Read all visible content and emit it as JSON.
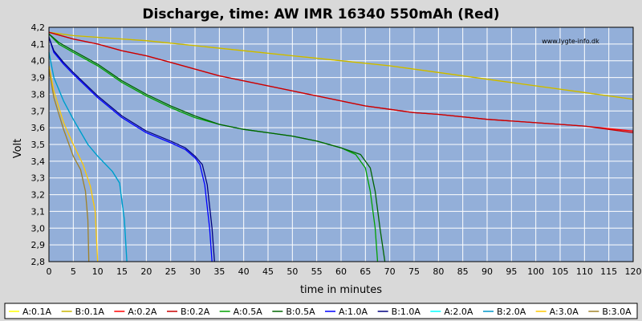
{
  "chart_data": {
    "type": "line",
    "title": "Discharge, time: AW IMR 16340 550mAh (Red)",
    "xlabel": "time in minutes",
    "ylabel": "Volt",
    "watermark": "www.lygte-info.dk",
    "xlim": [
      0,
      120
    ],
    "ylim": [
      2.8,
      4.2
    ],
    "x_ticks": [
      "0",
      "5",
      "10",
      "15",
      "20",
      "25",
      "30",
      "35",
      "40",
      "45",
      "50",
      "55",
      "60",
      "65",
      "70",
      "75",
      "80",
      "85",
      "90",
      "95",
      "100",
      "105",
      "110",
      "115",
      "120"
    ],
    "y_ticks": [
      "2,8",
      "2,9",
      "3,0",
      "3,1",
      "3,2",
      "3,3",
      "3,4",
      "3,5",
      "3,6",
      "3,7",
      "3,8",
      "3,9",
      "4,0",
      "4,1",
      "4,2"
    ],
    "grid": true,
    "legend_position": "bottom",
    "plot_background": "#93afd9",
    "series": [
      {
        "name": "A:0.1A",
        "color": "#ffff00",
        "points": [
          [
            0,
            4.17
          ],
          [
            5,
            4.15
          ],
          [
            10,
            4.14
          ],
          [
            20,
            4.12
          ],
          [
            30,
            4.09
          ],
          [
            40,
            4.06
          ],
          [
            50,
            4.03
          ],
          [
            60,
            4.0
          ],
          [
            70,
            3.97
          ],
          [
            80,
            3.93
          ],
          [
            90,
            3.89
          ],
          [
            100,
            3.85
          ],
          [
            110,
            3.81
          ],
          [
            120,
            3.77
          ]
        ]
      },
      {
        "name": "B:0.1A",
        "color": "#c8b400",
        "points": [
          [
            0,
            4.17
          ],
          [
            5,
            4.15
          ],
          [
            10,
            4.14
          ],
          [
            20,
            4.12
          ],
          [
            30,
            4.09
          ],
          [
            40,
            4.06
          ],
          [
            50,
            4.03
          ],
          [
            60,
            4.0
          ],
          [
            70,
            3.97
          ],
          [
            80,
            3.93
          ],
          [
            90,
            3.89
          ],
          [
            100,
            3.85
          ],
          [
            110,
            3.81
          ],
          [
            120,
            3.77
          ]
        ]
      },
      {
        "name": "A:0.2A",
        "color": "#ff0000",
        "points": [
          [
            0,
            4.17
          ],
          [
            5,
            4.13
          ],
          [
            10,
            4.1
          ],
          [
            15,
            4.06
          ],
          [
            20,
            4.03
          ],
          [
            25,
            3.99
          ],
          [
            30,
            3.95
          ],
          [
            35,
            3.91
          ],
          [
            40,
            3.88
          ],
          [
            45,
            3.85
          ],
          [
            50,
            3.82
          ],
          [
            55,
            3.79
          ],
          [
            60,
            3.76
          ],
          [
            65,
            3.73
          ],
          [
            70,
            3.71
          ],
          [
            75,
            3.69
          ],
          [
            80,
            3.68
          ],
          [
            90,
            3.65
          ],
          [
            100,
            3.63
          ],
          [
            110,
            3.61
          ],
          [
            120,
            3.58
          ]
        ]
      },
      {
        "name": "B:0.2A",
        "color": "#c80000",
        "points": [
          [
            0,
            4.17
          ],
          [
            5,
            4.13
          ],
          [
            10,
            4.1
          ],
          [
            15,
            4.06
          ],
          [
            20,
            4.03
          ],
          [
            25,
            3.99
          ],
          [
            30,
            3.95
          ],
          [
            35,
            3.91
          ],
          [
            40,
            3.88
          ],
          [
            45,
            3.85
          ],
          [
            50,
            3.82
          ],
          [
            55,
            3.79
          ],
          [
            60,
            3.76
          ],
          [
            65,
            3.73
          ],
          [
            70,
            3.71
          ],
          [
            75,
            3.69
          ],
          [
            80,
            3.68
          ],
          [
            90,
            3.65
          ],
          [
            100,
            3.63
          ],
          [
            110,
            3.61
          ],
          [
            120,
            3.57
          ]
        ]
      },
      {
        "name": "A:0.5A",
        "color": "#00a000",
        "points": [
          [
            0,
            4.16
          ],
          [
            2,
            4.1
          ],
          [
            5,
            4.05
          ],
          [
            10,
            3.97
          ],
          [
            15,
            3.87
          ],
          [
            20,
            3.79
          ],
          [
            25,
            3.72
          ],
          [
            30,
            3.66
          ],
          [
            35,
            3.62
          ],
          [
            40,
            3.59
          ],
          [
            45,
            3.57
          ],
          [
            50,
            3.55
          ],
          [
            55,
            3.52
          ],
          [
            60,
            3.48
          ],
          [
            63,
            3.44
          ],
          [
            65,
            3.36
          ],
          [
            66,
            3.22
          ],
          [
            67,
            3.0
          ],
          [
            67.5,
            2.8
          ]
        ]
      },
      {
        "name": "B:0.5A",
        "color": "#006400",
        "points": [
          [
            0,
            4.16
          ],
          [
            2,
            4.11
          ],
          [
            5,
            4.06
          ],
          [
            10,
            3.98
          ],
          [
            15,
            3.88
          ],
          [
            20,
            3.8
          ],
          [
            25,
            3.73
          ],
          [
            30,
            3.67
          ],
          [
            35,
            3.62
          ],
          [
            40,
            3.59
          ],
          [
            45,
            3.57
          ],
          [
            50,
            3.55
          ],
          [
            55,
            3.52
          ],
          [
            60,
            3.48
          ],
          [
            64,
            3.44
          ],
          [
            66,
            3.36
          ],
          [
            67,
            3.22
          ],
          [
            68,
            3.0
          ],
          [
            69,
            2.8
          ]
        ]
      },
      {
        "name": "A:1.0A",
        "color": "#0000ff",
        "points": [
          [
            0,
            4.14
          ],
          [
            1,
            4.05
          ],
          [
            3,
            3.98
          ],
          [
            5,
            3.92
          ],
          [
            10,
            3.78
          ],
          [
            15,
            3.66
          ],
          [
            20,
            3.57
          ],
          [
            25,
            3.51
          ],
          [
            28,
            3.47
          ],
          [
            30,
            3.42
          ],
          [
            31,
            3.38
          ],
          [
            32,
            3.26
          ],
          [
            33,
            3.0
          ],
          [
            33.5,
            2.8
          ]
        ]
      },
      {
        "name": "B:1.0A",
        "color": "#000080",
        "points": [
          [
            0,
            4.14
          ],
          [
            1,
            4.06
          ],
          [
            3,
            3.99
          ],
          [
            5,
            3.93
          ],
          [
            10,
            3.79
          ],
          [
            15,
            3.67
          ],
          [
            20,
            3.58
          ],
          [
            25,
            3.52
          ],
          [
            28,
            3.48
          ],
          [
            30,
            3.43
          ],
          [
            31.5,
            3.38
          ],
          [
            32.5,
            3.26
          ],
          [
            33.5,
            3.0
          ],
          [
            34,
            2.8
          ]
        ]
      },
      {
        "name": "A:2.0A",
        "color": "#00ffff",
        "points": [
          [
            0,
            4.05
          ],
          [
            1,
            3.9
          ],
          [
            3,
            3.76
          ],
          [
            5,
            3.65
          ],
          [
            8,
            3.5
          ],
          [
            10,
            3.43
          ],
          [
            13,
            3.34
          ],
          [
            14.5,
            3.27
          ],
          [
            15.5,
            3.05
          ],
          [
            16,
            2.8
          ]
        ]
      },
      {
        "name": "B:2.0A",
        "color": "#0096c8",
        "points": [
          [
            0,
            4.05
          ],
          [
            1,
            3.9
          ],
          [
            3,
            3.76
          ],
          [
            5,
            3.65
          ],
          [
            8,
            3.5
          ],
          [
            10,
            3.43
          ],
          [
            13,
            3.34
          ],
          [
            14.5,
            3.27
          ],
          [
            15.5,
            3.05
          ],
          [
            16,
            2.8
          ]
        ]
      },
      {
        "name": "A:3.0A",
        "color": "#ffc800",
        "points": [
          [
            0,
            3.97
          ],
          [
            1,
            3.82
          ],
          [
            3,
            3.63
          ],
          [
            5,
            3.5
          ],
          [
            7,
            3.38
          ],
          [
            8.5,
            3.25
          ],
          [
            9.5,
            3.1
          ],
          [
            10,
            2.8
          ]
        ]
      },
      {
        "name": "B:3.0A",
        "color": "#a08228",
        "points": [
          [
            0,
            3.95
          ],
          [
            1,
            3.78
          ],
          [
            3,
            3.59
          ],
          [
            5,
            3.43
          ],
          [
            6.5,
            3.35
          ],
          [
            7.5,
            3.22
          ],
          [
            8,
            3.05
          ],
          [
            8.2,
            2.8
          ]
        ]
      }
    ]
  }
}
